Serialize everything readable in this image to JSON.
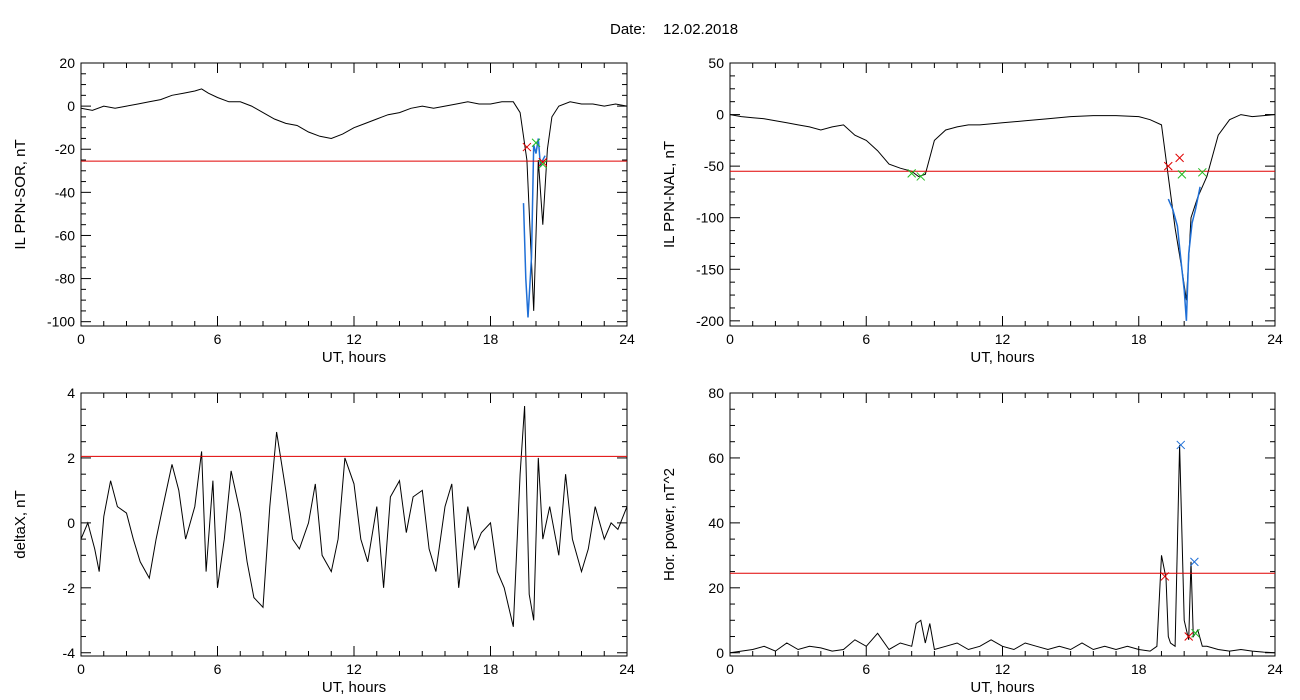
{
  "header": {
    "date_label": "Date:",
    "date_value": "12.02.2018"
  },
  "colors": {
    "trace": "#000000",
    "threshold": "#e00000",
    "highlight": "#1f6fd6",
    "marker_red": "#e00000",
    "marker_green": "#22bb22",
    "marker_blue": "#1f6fd6"
  },
  "chart_data": [
    {
      "type": "line",
      "xlabel": "UT, hours",
      "ylabel": "IL PPN-SOR, nT",
      "xlim": [
        0,
        24
      ],
      "ylim": [
        -102,
        20
      ],
      "xticks": [
        0,
        6,
        12,
        18,
        24
      ],
      "yticks": [
        -100,
        -80,
        -60,
        -40,
        -20,
        0,
        20
      ],
      "threshold": -25.5,
      "series": [
        {
          "color": "black",
          "x": [
            0,
            0.5,
            1,
            1.5,
            2,
            2.5,
            3,
            3.5,
            4,
            4.5,
            5,
            5.3,
            5.6,
            6,
            6.5,
            7,
            7.5,
            8,
            8.5,
            9,
            9.5,
            10,
            10.5,
            11,
            11.5,
            12,
            12.5,
            13,
            13.5,
            14,
            14.5,
            15,
            15.5,
            16,
            16.5,
            17,
            17.5,
            18,
            18.5,
            19,
            19.3,
            19.6,
            19.9,
            20.1,
            20.3,
            20.5,
            20.7,
            21,
            21.5,
            22,
            22.5,
            23,
            23.5,
            24
          ],
          "y": [
            -1,
            -2,
            0,
            -1,
            0,
            1,
            2,
            3,
            5,
            6,
            7,
            8,
            6,
            4,
            2,
            2,
            0,
            -3,
            -6,
            -8,
            -9,
            -12,
            -14,
            -15,
            -13,
            -10,
            -8,
            -6,
            -4,
            -3,
            -1,
            0,
            -1,
            0,
            1,
            2,
            1,
            1,
            2,
            2,
            -3,
            -25,
            -95,
            -25,
            -55,
            -20,
            -5,
            0,
            2,
            1,
            1,
            0,
            1,
            0
          ]
        }
      ],
      "highlight": {
        "color": "blue",
        "x": [
          19.45,
          19.55,
          19.65,
          19.8,
          19.9,
          20.0,
          20.1,
          20.2,
          20.3,
          20.4
        ],
        "y": [
          -45,
          -80,
          -98,
          -70,
          -18,
          -22,
          -15,
          -28,
          -25,
          -23
        ]
      },
      "markers": [
        {
          "x": 19.6,
          "y": -19,
          "color": "red"
        },
        {
          "x": 20.0,
          "y": -17,
          "color": "green"
        },
        {
          "x": 20.3,
          "y": -26,
          "color": "red"
        },
        {
          "x": 20.3,
          "y": -27,
          "color": "green"
        }
      ]
    },
    {
      "type": "line",
      "xlabel": "UT, hours",
      "ylabel": "IL PPN-NAL, nT",
      "xlim": [
        0,
        24
      ],
      "ylim": [
        -205,
        50
      ],
      "xticks": [
        0,
        6,
        12,
        18,
        24
      ],
      "yticks": [
        -200,
        -150,
        -100,
        -50,
        0,
        50
      ],
      "threshold": -55,
      "series": [
        {
          "color": "black",
          "x": [
            0,
            0.5,
            1,
            1.5,
            2,
            2.5,
            3,
            3.5,
            4,
            4.5,
            5,
            5.5,
            6,
            6.5,
            7,
            7.5,
            8,
            8.3,
            8.6,
            9,
            9.5,
            10,
            10.5,
            11,
            12,
            13,
            14,
            15,
            16,
            17,
            18,
            18.5,
            19,
            19.3,
            19.6,
            19.9,
            20.1,
            20.3,
            20.6,
            21,
            21.5,
            22,
            22.5,
            23,
            23.5,
            24
          ],
          "y": [
            0,
            -2,
            -3,
            -4,
            -6,
            -8,
            -10,
            -12,
            -15,
            -12,
            -10,
            -20,
            -25,
            -35,
            -48,
            -52,
            -55,
            -60,
            -58,
            -25,
            -15,
            -12,
            -10,
            -10,
            -8,
            -6,
            -4,
            -2,
            -1,
            -1,
            -2,
            -5,
            -10,
            -60,
            -110,
            -150,
            -180,
            -100,
            -80,
            -60,
            -20,
            -5,
            0,
            -2,
            -1,
            0
          ]
        }
      ],
      "highlight": {
        "color": "blue",
        "x": [
          19.3,
          19.5,
          19.7,
          19.9,
          20.0,
          20.1,
          20.2,
          20.35,
          20.5,
          20.7
        ],
        "y": [
          -82,
          -92,
          -108,
          -150,
          -170,
          -200,
          -135,
          -105,
          -92,
          -70
        ]
      },
      "markers": [
        {
          "x": 8.0,
          "y": -57,
          "color": "green"
        },
        {
          "x": 8.4,
          "y": -60,
          "color": "green"
        },
        {
          "x": 19.3,
          "y": -50,
          "color": "red"
        },
        {
          "x": 19.8,
          "y": -42,
          "color": "red"
        },
        {
          "x": 19.9,
          "y": -58,
          "color": "green"
        },
        {
          "x": 20.8,
          "y": -56,
          "color": "green"
        }
      ]
    },
    {
      "type": "line",
      "xlabel": "UT, hours",
      "ylabel": "deltaX, nT",
      "xlim": [
        0,
        24
      ],
      "ylim": [
        -4.1,
        4
      ],
      "xticks": [
        0,
        6,
        12,
        18,
        24
      ],
      "yticks": [
        -4,
        -2,
        0,
        2,
        4
      ],
      "threshold": 2.05,
      "series": [
        {
          "color": "black",
          "x": [
            0,
            0.3,
            0.6,
            0.8,
            1,
            1.3,
            1.6,
            2,
            2.3,
            2.6,
            3,
            3.3,
            3.6,
            4,
            4.3,
            4.6,
            5,
            5.3,
            5.5,
            5.8,
            6,
            6.3,
            6.6,
            7,
            7.3,
            7.6,
            8,
            8.3,
            8.6,
            9,
            9.3,
            9.6,
            10,
            10.3,
            10.6,
            11,
            11.3,
            11.6,
            12,
            12.3,
            12.6,
            13,
            13.3,
            13.6,
            14,
            14.3,
            14.6,
            15,
            15.3,
            15.6,
            16,
            16.3,
            16.6,
            17,
            17.3,
            17.6,
            18,
            18.3,
            18.6,
            19,
            19.3,
            19.5,
            19.7,
            19.9,
            20.1,
            20.3,
            20.6,
            21,
            21.3,
            21.6,
            22,
            22.3,
            22.6,
            23,
            23.3,
            23.6,
            24
          ],
          "y": [
            -0.5,
            0,
            -0.8,
            -1.5,
            0.2,
            1.3,
            0.5,
            0.3,
            -0.5,
            -1.2,
            -1.7,
            -0.5,
            0.5,
            1.8,
            1.0,
            -0.5,
            0.5,
            2.2,
            -1.5,
            1.3,
            -2.0,
            -0.5,
            1.6,
            0.3,
            -1.2,
            -2.3,
            -2.6,
            0.5,
            2.8,
            1.0,
            -0.5,
            -0.8,
            0.0,
            1.2,
            -1.0,
            -1.5,
            -0.5,
            2.0,
            1.2,
            -0.5,
            -1.2,
            0.5,
            -2.0,
            0.8,
            1.3,
            -0.3,
            0.8,
            1.0,
            -0.8,
            -1.5,
            0.5,
            1.2,
            -2.0,
            0.5,
            -0.8,
            -0.3,
            0.0,
            -1.5,
            -2.0,
            -3.2,
            1.5,
            3.6,
            -2.2,
            -3.0,
            2.0,
            -0.5,
            0.5,
            -1.0,
            1.5,
            -0.5,
            -1.5,
            -0.8,
            0.5,
            -0.5,
            0.0,
            -0.2,
            0.5
          ]
        }
      ],
      "markers": []
    },
    {
      "type": "line",
      "xlabel": "UT, hours",
      "ylabel": "Hor. power, nT^2",
      "xlim": [
        0,
        24
      ],
      "ylim": [
        -1,
        80
      ],
      "xticks": [
        0,
        6,
        12,
        18,
        24
      ],
      "yticks": [
        0,
        20,
        40,
        60,
        80
      ],
      "threshold": 24.5,
      "series": [
        {
          "color": "black",
          "x": [
            0,
            0.5,
            1,
            1.5,
            2,
            2.5,
            3,
            3.5,
            4,
            4.5,
            5,
            5.5,
            6,
            6.5,
            7,
            7.5,
            8,
            8.2,
            8.4,
            8.6,
            8.8,
            9,
            9.5,
            10,
            10.5,
            11,
            11.5,
            12,
            12.5,
            13,
            13.5,
            14,
            14.5,
            15,
            15.5,
            16,
            16.5,
            17,
            17.5,
            18,
            18.5,
            18.8,
            19.0,
            19.2,
            19.3,
            19.4,
            19.6,
            19.8,
            20.0,
            20.2,
            20.3,
            20.4,
            20.6,
            20.8,
            21,
            21.5,
            22,
            22.5,
            23,
            23.5,
            24
          ],
          "y": [
            0,
            0.5,
            1,
            2,
            0.5,
            3,
            1,
            2,
            1.5,
            0.5,
            1,
            4,
            2,
            6,
            1,
            3,
            2,
            9,
            10,
            3,
            9,
            1,
            2,
            3,
            1,
            2,
            4,
            2,
            1,
            3,
            2,
            1,
            2,
            1,
            3,
            1,
            2,
            1,
            2,
            1,
            0.5,
            2,
            30,
            23,
            5,
            3,
            2,
            64,
            10,
            4,
            28,
            5,
            7,
            2,
            2,
            1,
            0.5,
            1,
            0.5,
            0.2,
            0
          ]
        }
      ],
      "markers": [
        {
          "x": 19.15,
          "y": 23.5,
          "color": "red"
        },
        {
          "x": 19.85,
          "y": 64,
          "color": "blue"
        },
        {
          "x": 20.2,
          "y": 5,
          "color": "red"
        },
        {
          "x": 20.45,
          "y": 28,
          "color": "blue"
        },
        {
          "x": 20.5,
          "y": 6,
          "color": "green"
        }
      ]
    }
  ]
}
